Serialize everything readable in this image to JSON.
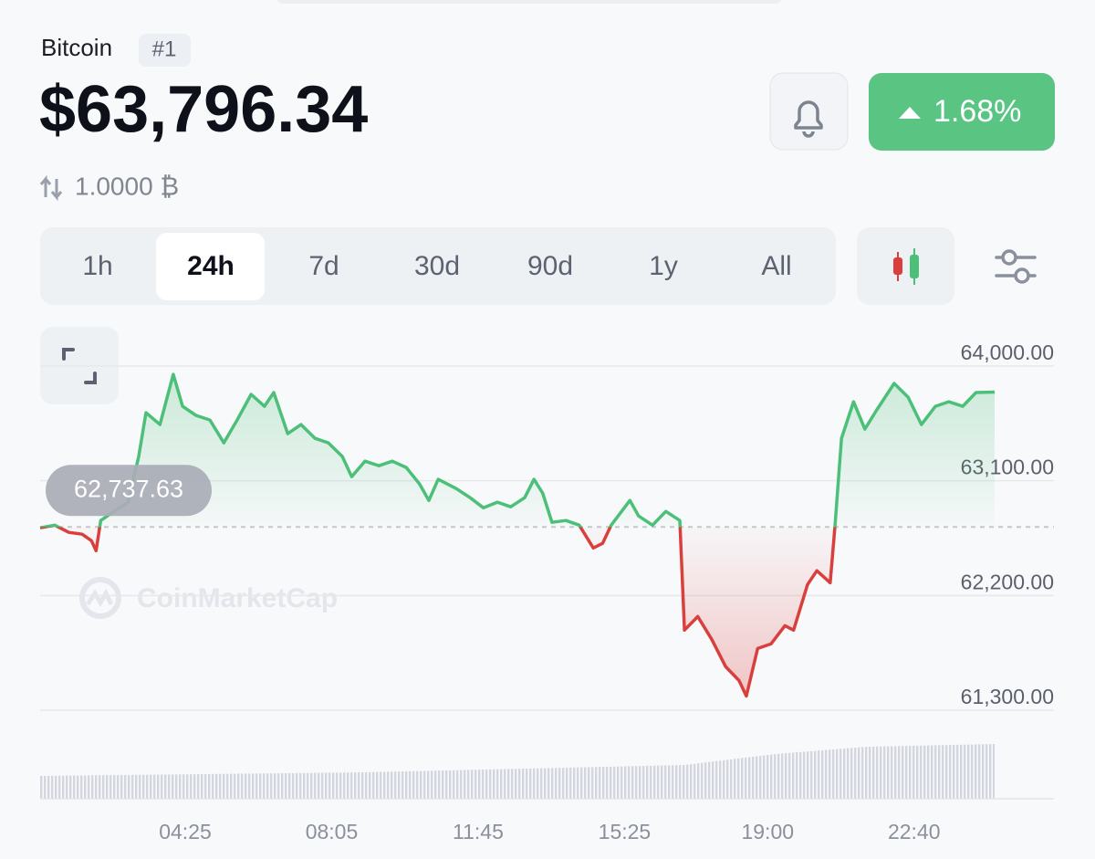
{
  "header": {
    "name": "Bitcoin",
    "rank": "#1",
    "price": "$63,796.34",
    "change": "1.68%",
    "holding": "1.0000 ₿"
  },
  "tabs": {
    "items": [
      "1h",
      "24h",
      "7d",
      "30d",
      "90d",
      "1y",
      "All"
    ],
    "selected": 1
  },
  "watermark": "CoinMarketCap",
  "chart_data": {
    "type": "line",
    "x": [
      47,
      69,
      90,
      110,
      124,
      131,
      138,
      158,
      179,
      195,
      206,
      227,
      247,
      261,
      281,
      302,
      323,
      343,
      364,
      384,
      398,
      419,
      439,
      460,
      480,
      501,
      515,
      535,
      556,
      576,
      597,
      617,
      631,
      645,
      672,
      693,
      713,
      734,
      754,
      775,
      789,
      802,
      816,
      837,
      857,
      878,
      892,
      905,
      933,
      946,
      967,
      987,
      1008,
      1015,
      1035,
      1056,
      1077,
      1097,
      1108,
      1125,
      1145,
      1166,
      1179,
      1200,
      1214,
      1234,
      1241,
      1251,
      1269,
      1286,
      1303,
      1330,
      1351,
      1371,
      1392,
      1412,
      1433,
      1453,
      1481
    ],
    "values": [
      62731,
      62752,
      62695,
      62681,
      62630,
      62551,
      62788,
      62860,
      62932,
      63290,
      63634,
      63541,
      63935,
      63684,
      63613,
      63577,
      63398,
      63577,
      63778,
      63684,
      63792,
      63469,
      63541,
      63433,
      63398,
      63290,
      63132,
      63254,
      63218,
      63254,
      63204,
      63075,
      62946,
      63111,
      63039,
      62967,
      62888,
      62932,
      62896,
      62967,
      63111,
      63003,
      62774,
      62788,
      62752,
      62573,
      62609,
      62752,
      62946,
      62824,
      62752,
      62860,
      62788,
      61928,
      62035,
      61856,
      61641,
      61533,
      61411,
      61784,
      61820,
      61963,
      61928,
      62286,
      62394,
      62300,
      62731,
      63433,
      63720,
      63505,
      63649,
      63864,
      63756,
      63541,
      63684,
      63720,
      63684,
      63792,
      63796
    ],
    "xlim": [
      47,
      1481
    ],
    "xticks": [
      {
        "value": 265,
        "label": "04:25"
      },
      {
        "value": 485,
        "label": "08:05"
      },
      {
        "value": 705,
        "label": "11:45"
      },
      {
        "value": 925,
        "label": "15:25"
      },
      {
        "value": 1140,
        "label": "19:00"
      },
      {
        "value": 1360,
        "label": "22:40"
      }
    ],
    "ylim": [
      61300,
      64000
    ],
    "yticks": [
      {
        "value": 61300,
        "label": "61,300.00"
      },
      {
        "value": 62200,
        "label": "62,200.00"
      },
      {
        "value": 63100,
        "label": "63,100.00"
      },
      {
        "value": 64000,
        "label": "64,000.00"
      }
    ],
    "baseline": {
      "value": 62737.63,
      "label": "62,737.63"
    },
    "up_color": "#4cbf78",
    "down_color": "#d9403d",
    "grid": true
  }
}
